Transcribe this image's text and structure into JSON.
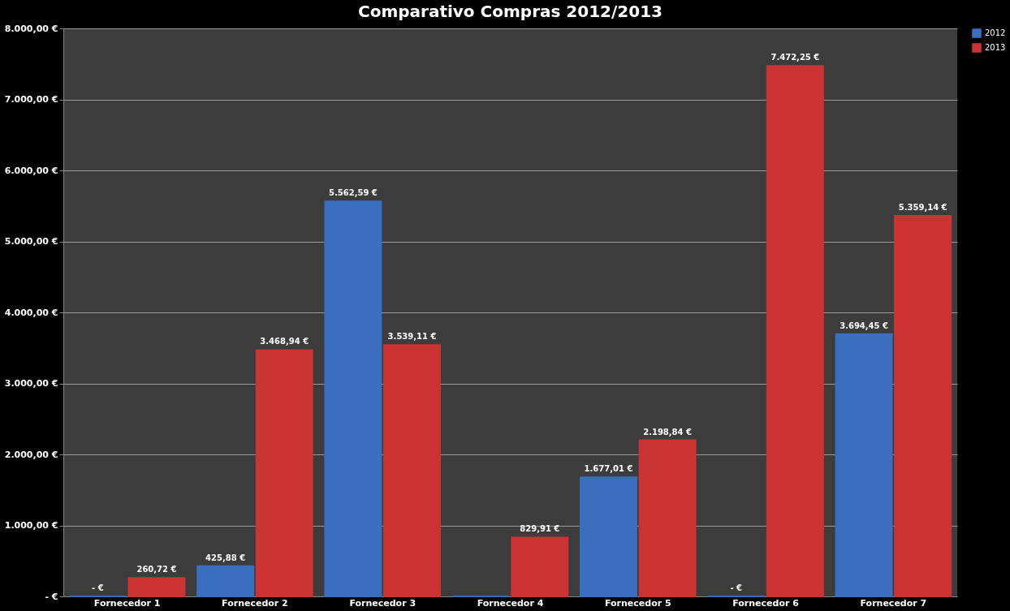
{
  "chart_data": {
    "type": "bar",
    "title": "Comparativo Compras 2012/2013",
    "categories": [
      "Fornecedor 1",
      "Fornecedor 2",
      "Fornecedor 3",
      "Fornecedor 4",
      "Fornecedor 5",
      "Fornecedor 6",
      "Fornecedor 7"
    ],
    "series": [
      {
        "name": "2012",
        "color": "#3a6fbf",
        "values": [
          0,
          425.88,
          5562.59,
          0,
          1677.01,
          0,
          3694.45
        ],
        "value_labels": [
          "- €",
          "425,88 €",
          "5.562,59 €",
          null,
          "1.677,01 €",
          "- €",
          "3.694,45 €"
        ]
      },
      {
        "name": "2013",
        "color": "#cc3333",
        "values": [
          260.72,
          3468.94,
          3539.11,
          829.91,
          2198.84,
          7472.25,
          5359.14
        ],
        "value_labels": [
          "260,72 €",
          "3.468,94 €",
          "3.539,11 €",
          "829,91 €",
          "2.198,84 €",
          "7.472,25 €",
          "5.359,14 €"
        ]
      }
    ],
    "ylim": [
      0,
      8000
    ],
    "yticks": [
      {
        "value": 0,
        "label": "- €"
      },
      {
        "value": 1000,
        "label": "1.000,00 €"
      },
      {
        "value": 2000,
        "label": "2.000,00 €"
      },
      {
        "value": 3000,
        "label": "3.000,00 €"
      },
      {
        "value": 4000,
        "label": "4.000,00 €"
      },
      {
        "value": 5000,
        "label": "5.000,00 €"
      },
      {
        "value": 6000,
        "label": "6.000,00 €"
      },
      {
        "value": 7000,
        "label": "7.000,00 €"
      },
      {
        "value": 8000,
        "label": "8.000,00 €"
      }
    ],
    "grid": "y",
    "legend": "right"
  }
}
